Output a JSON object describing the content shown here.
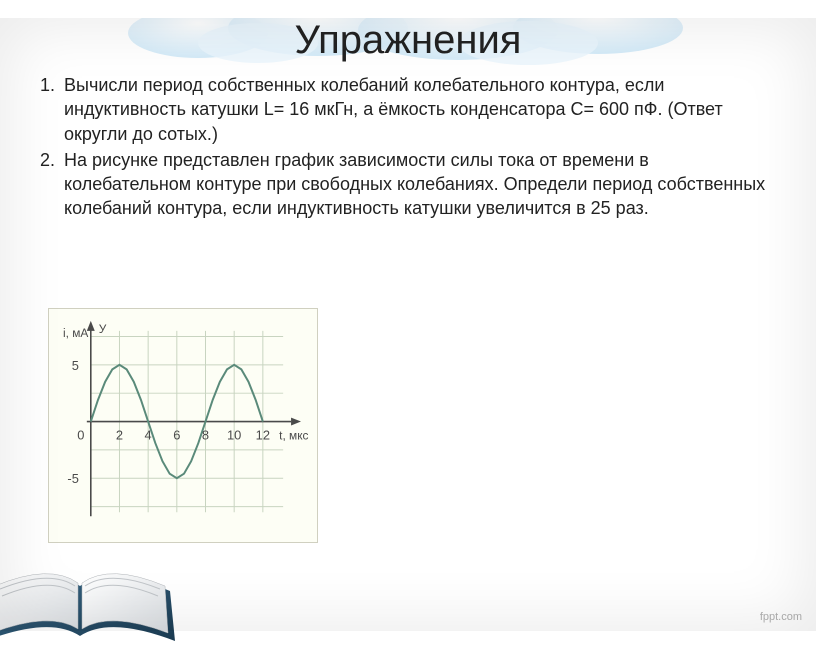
{
  "title": "Упражнения",
  "tasks": [
    {
      "number": "1.",
      "text": "Вычисли период собственных колебаний колебательного контура, если индуктивность катушки L= 16 мкГн, а ёмкость конденсатора C= 600 пФ. (Ответ округли до сотых.)"
    },
    {
      "number": "2.",
      "text": "На рисунке представлен график зависимости силы тока от времени в колебательном контуре при свободных колебаниях. Определи период собственных колебаний контура, если индуктивность катушки увеличится в 25 раз."
    }
  ],
  "chart": {
    "type": "line",
    "y_axis_label": "i, мА",
    "y_axis_sublabel": "У",
    "x_axis_label": "t, мкс",
    "background_color": "#fdfef5",
    "grid_color": "#c8d4c0",
    "axis_color": "#4a4a4a",
    "curve_color": "#5a8a7a",
    "x_ticks": [
      0,
      2,
      4,
      6,
      8,
      10,
      12
    ],
    "y_ticks": [
      -5,
      0,
      5
    ],
    "x_range": [
      0,
      13
    ],
    "y_range": [
      -8,
      8
    ],
    "sine_amplitude": 5,
    "sine_period": 8,
    "sine_points": [
      [
        0,
        0
      ],
      [
        0.5,
        1.9
      ],
      [
        1,
        3.5
      ],
      [
        1.5,
        4.6
      ],
      [
        2,
        5
      ],
      [
        2.5,
        4.6
      ],
      [
        3,
        3.5
      ],
      [
        3.5,
        1.9
      ],
      [
        4,
        0
      ],
      [
        4.5,
        -1.9
      ],
      [
        5,
        -3.5
      ],
      [
        5.5,
        -4.6
      ],
      [
        6,
        -5
      ],
      [
        6.5,
        -4.6
      ],
      [
        7,
        -3.5
      ],
      [
        7.5,
        -1.9
      ],
      [
        8,
        0
      ],
      [
        8.5,
        1.9
      ],
      [
        9,
        3.5
      ],
      [
        9.5,
        4.6
      ],
      [
        10,
        5
      ],
      [
        10.5,
        4.6
      ],
      [
        11,
        3.5
      ],
      [
        11.5,
        1.9
      ],
      [
        12,
        0
      ]
    ],
    "tick_fontsize": 13
  },
  "footer": "fppt.com"
}
